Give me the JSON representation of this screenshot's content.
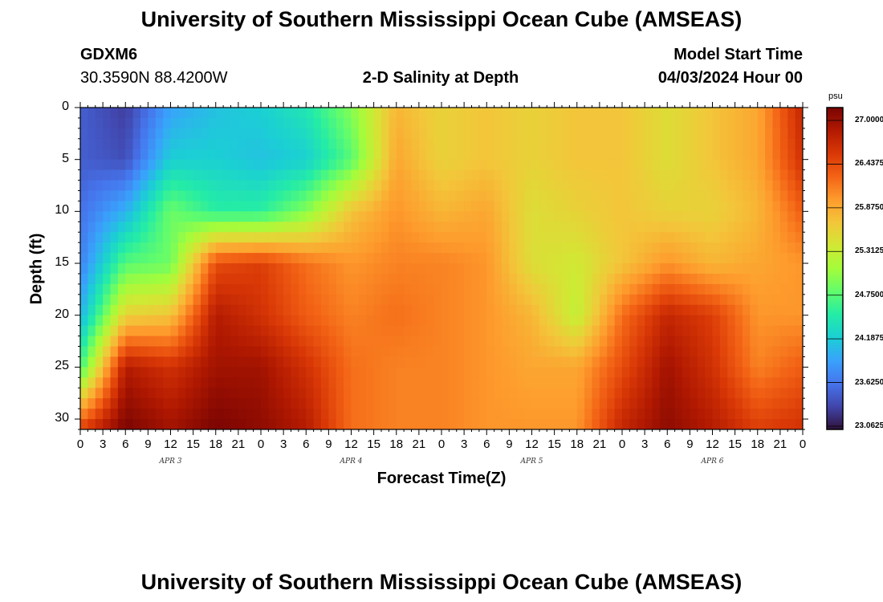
{
  "header": {
    "title": "University of Southern Mississippi Ocean Cube (AMSEAS)",
    "footer_title": "University of Southern Mississippi Ocean Cube (AMSEAS)",
    "station_id": "GDXM6",
    "station_coords": "30.3590N  88.4200W",
    "plot_title": "2-D Salinity at Depth",
    "model_start_label": "Model Start Time",
    "model_start_value": "04/03/2024 Hour 00"
  },
  "chart_data": {
    "type": "heatmap",
    "title": "2-D Salinity at Depth",
    "xlabel": "Forecast Time(Z)",
    "ylabel": "Depth (ft)",
    "x_hours_range": [
      0,
      96
    ],
    "ylim": [
      0,
      31
    ],
    "x_tick_labels": [
      "0",
      "3",
      "6",
      "9",
      "12",
      "15",
      "18",
      "21",
      "0",
      "3",
      "6",
      "9",
      "12",
      "15",
      "18",
      "21",
      "0",
      "3",
      "6",
      "9",
      "12",
      "15",
      "18",
      "21",
      "0",
      "3",
      "6",
      "9",
      "12",
      "15",
      "18",
      "21",
      "0"
    ],
    "y_ticks": [
      0,
      5,
      10,
      15,
      20,
      25,
      30
    ],
    "day_labels": [
      "APR 3",
      "APR 4",
      "APR 5",
      "APR 6"
    ],
    "colorbar": {
      "unit": "psu",
      "range": [
        23.0625,
        27.0
      ],
      "tick_labels": [
        "27.0000",
        "26.4375",
        "25.8750",
        "25.3125",
        "24.7500",
        "24.1875",
        "23.6250",
        "23.0625"
      ],
      "colors": [
        "#30123b",
        "#4145ab",
        "#4675ed",
        "#39a2fc",
        "#1bcfd4",
        "#24eca6",
        "#61fc6c",
        "#a4fc3b",
        "#d1e834",
        "#f3c63a",
        "#fe9b2d",
        "#f36315",
        "#d93806",
        "#b11901",
        "#7a0402"
      ]
    },
    "grid_hours": [
      0,
      6,
      12,
      18,
      24,
      30,
      36,
      42,
      48,
      54,
      60,
      66,
      72,
      78,
      84,
      90,
      96
    ],
    "grid_depths_ft": [
      0,
      5,
      10,
      15,
      20,
      25,
      31
    ],
    "salinity_psu": [
      [
        23.5,
        23.3,
        23.9,
        24.1,
        24.2,
        24.4,
        24.9,
        25.7,
        25.5,
        25.6,
        25.5,
        25.6,
        25.6,
        25.4,
        25.6,
        25.8,
        26.6
      ],
      [
        23.5,
        23.4,
        24.2,
        24.2,
        24.1,
        24.2,
        24.7,
        25.8,
        25.5,
        25.6,
        25.5,
        25.6,
        25.6,
        25.4,
        25.6,
        25.8,
        26.5
      ],
      [
        23.6,
        24.0,
        24.8,
        24.5,
        24.5,
        24.9,
        25.6,
        25.9,
        25.7,
        25.8,
        25.4,
        25.5,
        25.6,
        25.5,
        25.5,
        25.7,
        26.2
      ],
      [
        23.7,
        24.7,
        24.8,
        26.3,
        26.4,
        26.1,
        25.9,
        26.0,
        26.0,
        25.9,
        25.4,
        25.3,
        25.6,
        25.9,
        25.7,
        25.8,
        25.9
      ],
      [
        24.0,
        25.5,
        25.6,
        26.7,
        26.5,
        26.2,
        26.0,
        26.1,
        26.0,
        25.9,
        25.7,
        25.2,
        26.1,
        26.6,
        26.4,
        25.9,
        25.9
      ],
      [
        24.6,
        26.7,
        26.5,
        26.8,
        26.8,
        26.5,
        26.1,
        26.0,
        26.0,
        25.9,
        25.8,
        25.8,
        26.3,
        26.8,
        26.5,
        26.0,
        26.2
      ],
      [
        26.4,
        27.0,
        26.8,
        27.0,
        26.9,
        26.7,
        26.1,
        26.0,
        26.0,
        25.9,
        25.9,
        25.9,
        26.6,
        26.9,
        26.7,
        26.4,
        26.5
      ]
    ]
  }
}
